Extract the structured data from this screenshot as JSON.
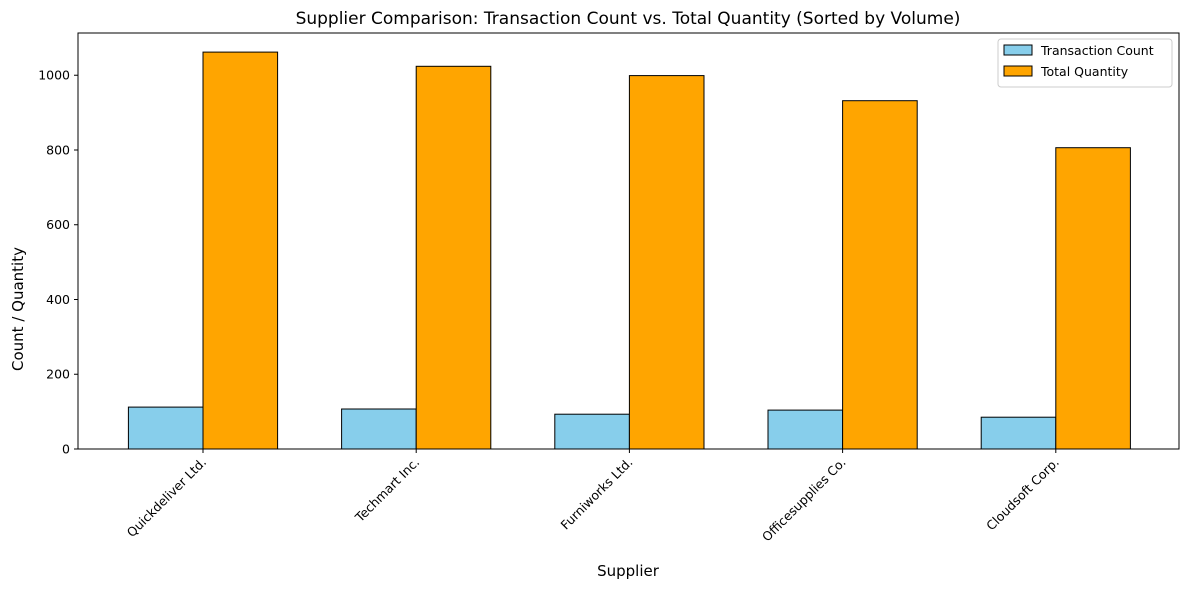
{
  "chart_data": {
    "type": "bar",
    "title": "Supplier Comparison: Transaction Count vs. Total Quantity (Sorted by Volume)",
    "xlabel": "Supplier",
    "ylabel": "Count / Quantity",
    "categories": [
      "Quickdeliver Ltd.",
      "Techmart Inc.",
      "Furniworks Ltd.",
      "Officesupplies Co.",
      "Cloudsoft Corp."
    ],
    "series": [
      {
        "name": "Transaction Count",
        "color": "#87ceeb",
        "values": [
          112,
          107,
          93,
          104,
          85
        ]
      },
      {
        "name": "Total Quantity",
        "color": "#ffa500",
        "values": [
          1062,
          1024,
          999,
          932,
          806
        ]
      }
    ],
    "ylim": [
      0,
      1113
    ],
    "yticks": [
      0,
      200,
      400,
      600,
      800,
      1000
    ],
    "grid": false,
    "legend": "top-right"
  }
}
